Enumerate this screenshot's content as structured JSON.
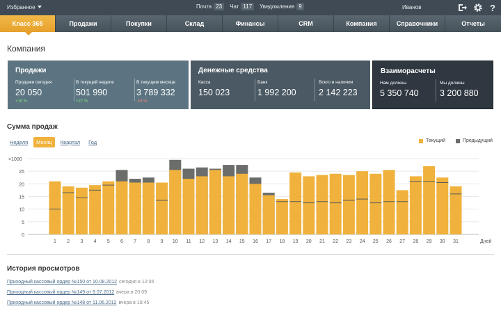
{
  "topbar": {
    "favorites": "Избранное",
    "mail_label": "Почта",
    "mail_count": "23",
    "chat_label": "Чат",
    "chat_count": "117",
    "notif_label": "Уведомления",
    "notif_count": "9",
    "user": "Иванов"
  },
  "nav": [
    {
      "label": "Класс 365",
      "active": true
    },
    {
      "label": "Продажи"
    },
    {
      "label": "Покупки"
    },
    {
      "label": "Склад"
    },
    {
      "label": "Финансы"
    },
    {
      "label": "CRM"
    },
    {
      "label": "Компания"
    },
    {
      "label": "Справочники"
    },
    {
      "label": "Отчеты"
    }
  ],
  "page_title": "Компания",
  "cards": {
    "sales": {
      "title": "Продажи",
      "today_label": "Продажи сегодня",
      "today_value": "20 050",
      "today_delta": "+10 %",
      "week_label": "В текущей неделе",
      "week_value": "501 990",
      "week_delta": "+27 %",
      "month_label": "В текущем месяце",
      "month_value": "3 789 332",
      "month_delta": "-15 %"
    },
    "cash": {
      "title": "Денежные средства",
      "kassa_label": "Касса",
      "kassa_value": "150 023",
      "bank_label": "Банк",
      "bank_value": "1 992 200",
      "total_label": "Всего в наличии",
      "total_value": "2 142 223"
    },
    "settle": {
      "title": "Взаиморасчеты",
      "owe_us_label": "Нам должны",
      "owe_us_value": "5 350 740",
      "we_owe_label": "Мы должны",
      "we_owe_value": "3 200 880"
    }
  },
  "sales_section": {
    "title": "Сумма продаж",
    "periods": [
      {
        "label": "Неделя"
      },
      {
        "label": "Месяц",
        "active": true
      },
      {
        "label": "Квартал"
      },
      {
        "label": "Год"
      }
    ]
  },
  "chart_data": {
    "type": "bar",
    "y_unit": "×1000",
    "x_unit": "Дней",
    "ylim": [
      0,
      30
    ],
    "yticks": [
      0,
      5,
      10,
      15,
      20,
      25,
      30
    ],
    "categories": [
      "1",
      "2",
      "3",
      "4",
      "5",
      "6",
      "7",
      "8",
      "9",
      "10",
      "11",
      "12",
      "13",
      "14",
      "15",
      "16",
      "17",
      "18",
      "19",
      "20",
      "21",
      "22",
      "23",
      "24",
      "25",
      "26",
      "27",
      "28",
      "29",
      "30",
      "31"
    ],
    "series": [
      {
        "name": "Текущий",
        "color": "#f0b23c",
        "values": [
          21,
          19,
          18.5,
          19.5,
          21,
          21,
          20.5,
          20.5,
          20.5,
          25.5,
          22,
          23,
          25.5,
          23,
          24,
          20,
          15.5,
          14,
          24.5,
          23,
          23.5,
          24,
          23.5,
          25,
          24,
          25.5,
          17.5,
          23,
          27,
          22.5,
          19
        ]
      },
      {
        "name": "Предыдущий",
        "color": "#6b6d6b",
        "values": [
          10,
          16.5,
          14.5,
          17.5,
          19.5,
          25.5,
          22,
          22.5,
          13.5,
          29.5,
          26,
          26.5,
          26,
          27.5,
          27.5,
          22.5,
          16.5,
          13,
          13,
          12.5,
          13,
          12.5,
          13.5,
          14,
          12.5,
          13,
          13,
          21,
          21,
          20.5,
          16
        ]
      }
    ],
    "grid": true,
    "legend": "top-right"
  },
  "history": {
    "title": "История просмотров",
    "items": [
      {
        "link": "Приходный кассовый ордер №150 от 10.08.2012",
        "when": "сегодня в 12:05"
      },
      {
        "link": "Приходный кассовый ордер №149 от 9.07.2012",
        "when": "вчера в 20:09"
      },
      {
        "link": "Приходный кассовый ордер №148 от 11.06.2012",
        "when": "вчера в 19:45"
      }
    ]
  }
}
